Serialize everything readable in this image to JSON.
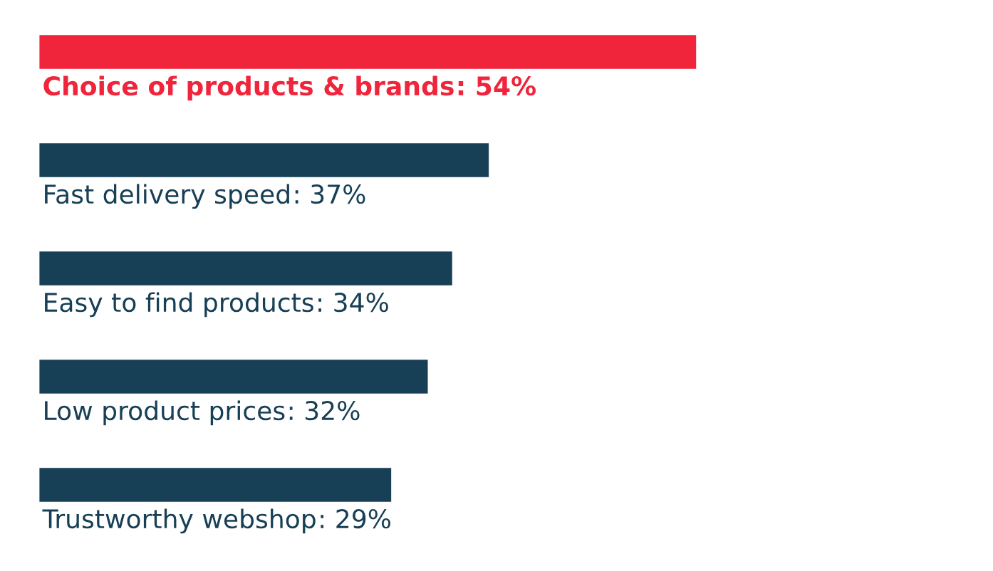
{
  "chart_data": {
    "type": "bar",
    "orientation": "horizontal",
    "categories": [
      "Choice of products & brands",
      "Fast delivery speed",
      "Easy to find products",
      "Low product prices",
      "Trustworthy webshop"
    ],
    "values": [
      54,
      37,
      34,
      32,
      29
    ],
    "colors": [
      "#f0243a",
      "#173f55",
      "#173f55",
      "#173f55",
      "#173f55"
    ],
    "value_labels": [
      ": 54%",
      ": 37%",
      ": 34%",
      ": 32%",
      ": 29%"
    ]
  }
}
